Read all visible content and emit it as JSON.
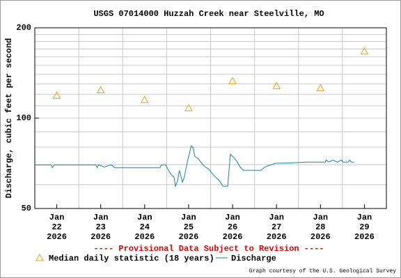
{
  "chart_data": {
    "type": "line",
    "title": "USGS 07014000 Huzzah Creek near Steelville, MO",
    "ylabel": "Discharge, cubic feet per second",
    "log_scale_y": true,
    "grid": true,
    "xlim": [
      21.5,
      29.5
    ],
    "xticks": [
      {
        "value": 22,
        "label": "Jan\n22\n2026"
      },
      {
        "value": 23,
        "label": "Jan\n23\n2026"
      },
      {
        "value": 24,
        "label": "Jan\n24\n2026"
      },
      {
        "value": 25,
        "label": "Jan\n25\n2026"
      },
      {
        "value": 26,
        "label": "Jan\n26\n2026"
      },
      {
        "value": 27,
        "label": "Jan\n27\n2026"
      },
      {
        "value": 28,
        "label": "Jan\n28\n2026"
      },
      {
        "value": 29,
        "label": "Jan\n29\n2026"
      }
    ],
    "xgrid": [
      22.5,
      23.5,
      24.5,
      25.5,
      26.5,
      27.5,
      28.5
    ],
    "ylim": [
      50,
      200
    ],
    "yticks": [
      50,
      100,
      200
    ],
    "y_minor_grid": [
      60,
      70,
      80,
      90,
      110,
      120,
      130,
      140,
      150,
      160,
      170,
      180,
      190
    ],
    "series": [
      {
        "name": "Median daily statistic (18 years)",
        "color": "#e8a317",
        "marker": "triangle",
        "x": [
          22,
          23,
          24,
          25,
          26,
          27,
          28,
          29
        ],
        "values": [
          119,
          124,
          115,
          108,
          133,
          128,
          126,
          167
        ]
      },
      {
        "name": "Discharge",
        "color": "#1b7fa6",
        "marker": "line",
        "x": [
          21.5,
          21.87,
          21.9,
          21.94,
          22.89,
          22.92,
          22.95,
          23.08,
          23.24,
          23.32,
          24.35,
          24.38,
          24.48,
          24.51,
          24.59,
          24.67,
          24.7,
          24.75,
          24.79,
          24.86,
          24.9,
          24.98,
          25.06,
          25.1,
          25.14,
          25.22,
          25.3,
          25.38,
          25.46,
          25.54,
          25.62,
          25.7,
          25.78,
          25.89,
          25.95,
          26.02,
          26.1,
          26.17,
          26.25,
          26.65,
          26.73,
          26.97,
          27.37,
          27.68,
          28.11,
          28.13,
          28.19,
          28.29,
          28.38,
          28.48,
          28.51,
          28.63,
          28.67,
          28.7,
          28.76
        ],
        "values": [
          69.9,
          69.9,
          68.4,
          69.9,
          69.9,
          68.4,
          69.9,
          68.7,
          69.9,
          68.4,
          68.4,
          69.9,
          69.9,
          68.4,
          65.2,
          63.5,
          59.3,
          61.9,
          67.0,
          61.2,
          63.5,
          72.5,
          80.8,
          80.0,
          74.5,
          73.3,
          70.7,
          68.7,
          67.7,
          65.2,
          63.5,
          61.9,
          59.3,
          59.3,
          75.8,
          74.1,
          71.8,
          68.7,
          67.0,
          67.0,
          68.7,
          70.7,
          71.0,
          71.4,
          71.4,
          72.5,
          71.4,
          72.5,
          71.4,
          72.5,
          71.4,
          71.4,
          72.5,
          71.4,
          71.4
        ]
      }
    ],
    "notice": "---- Provisional Data Subject to Revision ----",
    "credit": "Graph courtesy of the U.S. Geological Survey"
  }
}
